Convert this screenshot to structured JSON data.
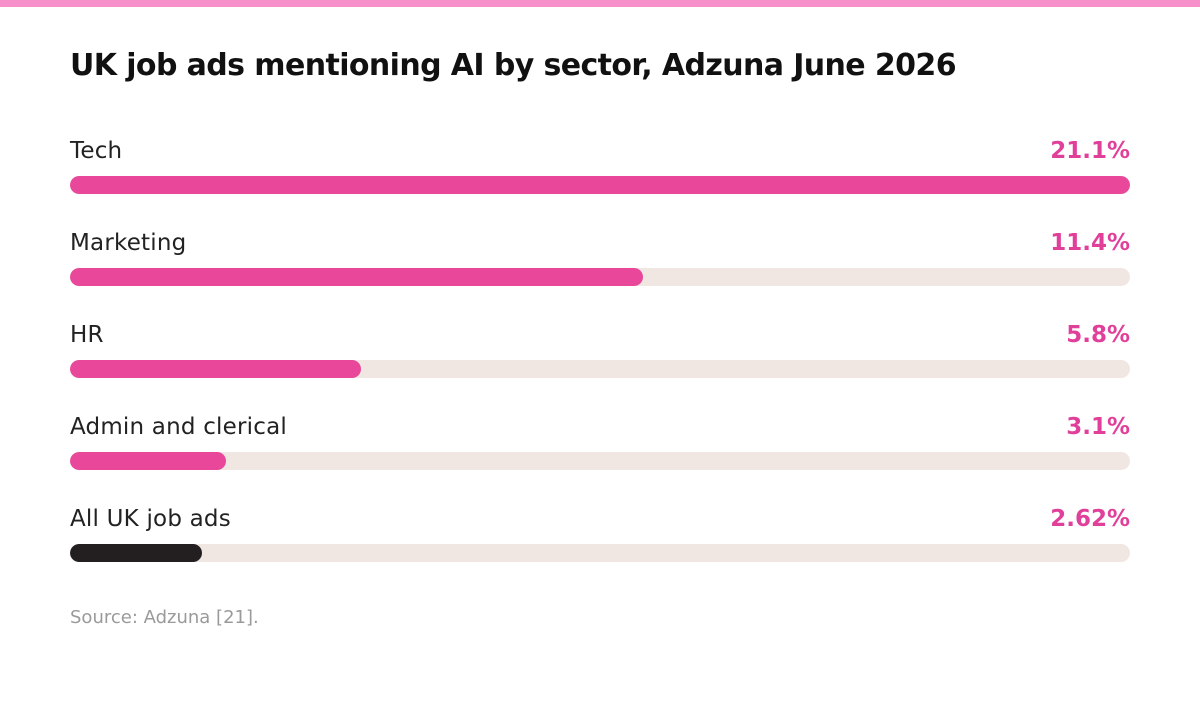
{
  "chart_data": {
    "type": "bar",
    "orientation": "horizontal",
    "title": "UK job ads mentioning AI by sector, Adzuna June 2026",
    "categories": [
      "Tech",
      "Marketing",
      "HR",
      "Admin and clerical",
      "All UK job ads"
    ],
    "values": [
      21.1,
      11.4,
      5.8,
      3.1,
      2.62
    ],
    "value_labels": [
      "21.1%",
      "11.4%",
      "5.8%",
      "3.1%",
      "2.62%"
    ],
    "unit": "%",
    "xlim": [
      0,
      21.1
    ],
    "grid": false,
    "legend": "none",
    "source": "Source: Adzuna [21]."
  },
  "colors": {
    "accent": "#e8479a",
    "highlight_bar": "#231f20",
    "track": "#f0e7e2",
    "value_text": "#e0409a",
    "highlight_value_text": "#e0409a",
    "top_accent": "#f78fcb"
  }
}
